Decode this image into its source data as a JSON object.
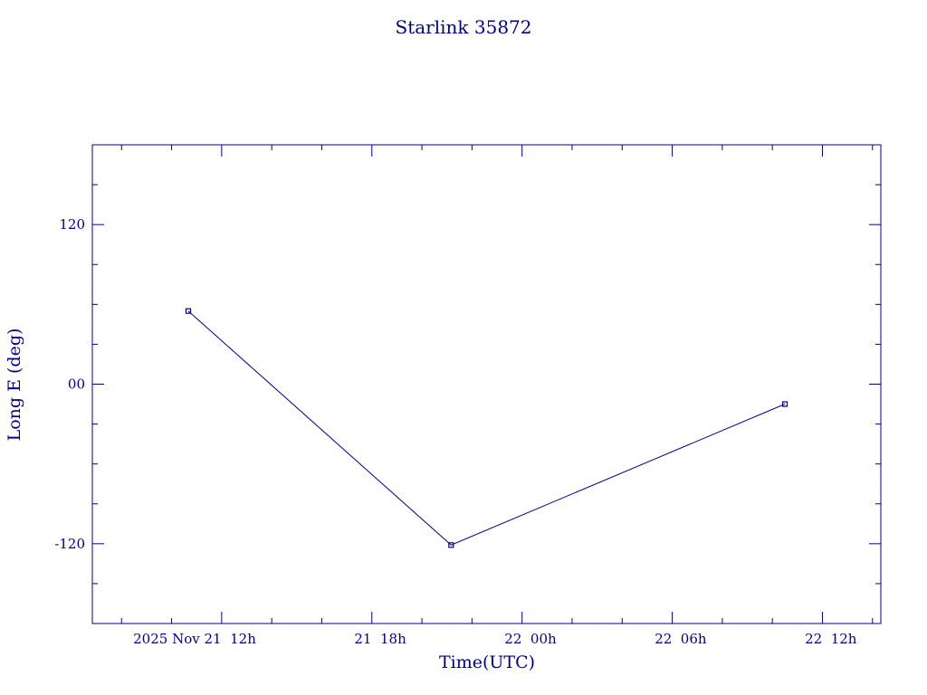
{
  "chart_data": {
    "type": "line",
    "title": "Starlink 35872",
    "xlabel": "Time(UTC)",
    "ylabel": "Long E (deg)",
    "x_tick_labels": [
      "2025 Nov 21  12h",
      "21  18h",
      "22  00h",
      "22  06h",
      "22  12h"
    ],
    "x_ticks": [
      "2025-11-21T12:00",
      "2025-11-21T18:00",
      "2025-11-22T00:00",
      "2025-11-22T06:00",
      "2025-11-22T12:00"
    ],
    "xlim": [
      "2025-11-21T06:50",
      "2025-11-22T14:20"
    ],
    "y_tick_labels": [
      "120",
      "00",
      "-120"
    ],
    "y_ticks": [
      120,
      0,
      -120
    ],
    "ylim": [
      -180,
      180
    ],
    "grid": false,
    "colors": {
      "ink": "#00008b"
    },
    "series": [
      {
        "x": [
          "2025-11-21T10:40",
          "2025-11-21T21:10",
          "2025-11-22T10:30"
        ],
        "values": [
          55,
          -121,
          -15
        ]
      }
    ]
  }
}
